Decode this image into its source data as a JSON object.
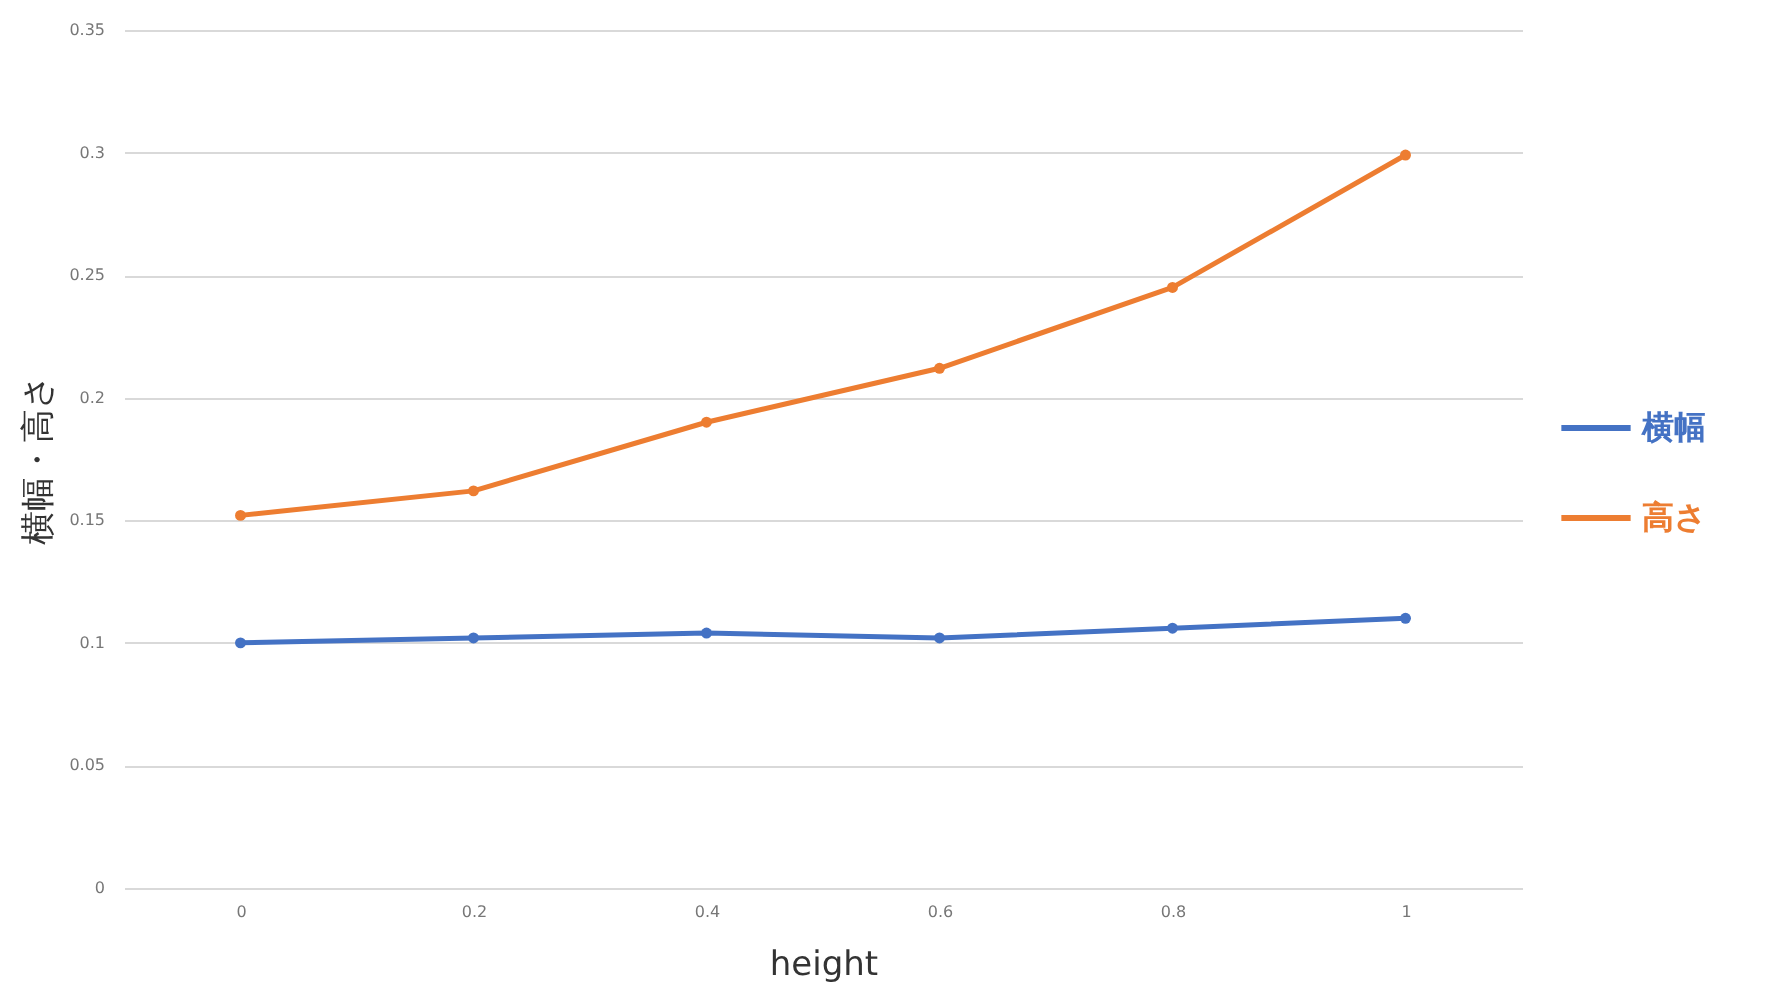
{
  "chart_data": {
    "type": "line",
    "xlabel": "height",
    "ylabel": "横幅・高さ",
    "x": [
      0,
      0.2,
      0.4,
      0.6,
      0.8,
      1
    ],
    "series": [
      {
        "name": "横幅",
        "color": "#4472c4",
        "values": [
          0.1,
          0.102,
          0.104,
          0.102,
          0.106,
          0.11
        ]
      },
      {
        "name": "高さ",
        "color": "#ed7d31",
        "values": [
          0.152,
          0.162,
          0.19,
          0.212,
          0.245,
          0.299
        ]
      }
    ],
    "xlim": [
      -0.1,
      1.1
    ],
    "xticks": [
      0,
      0.2,
      0.4,
      0.6,
      0.8,
      1
    ],
    "ylim": [
      0,
      0.35
    ],
    "yticks": [
      0,
      0.05,
      0.1,
      0.15,
      0.2,
      0.25,
      0.3,
      0.35
    ],
    "grid": "y",
    "legend": "right",
    "marker": "circle",
    "line_style": "solid"
  }
}
